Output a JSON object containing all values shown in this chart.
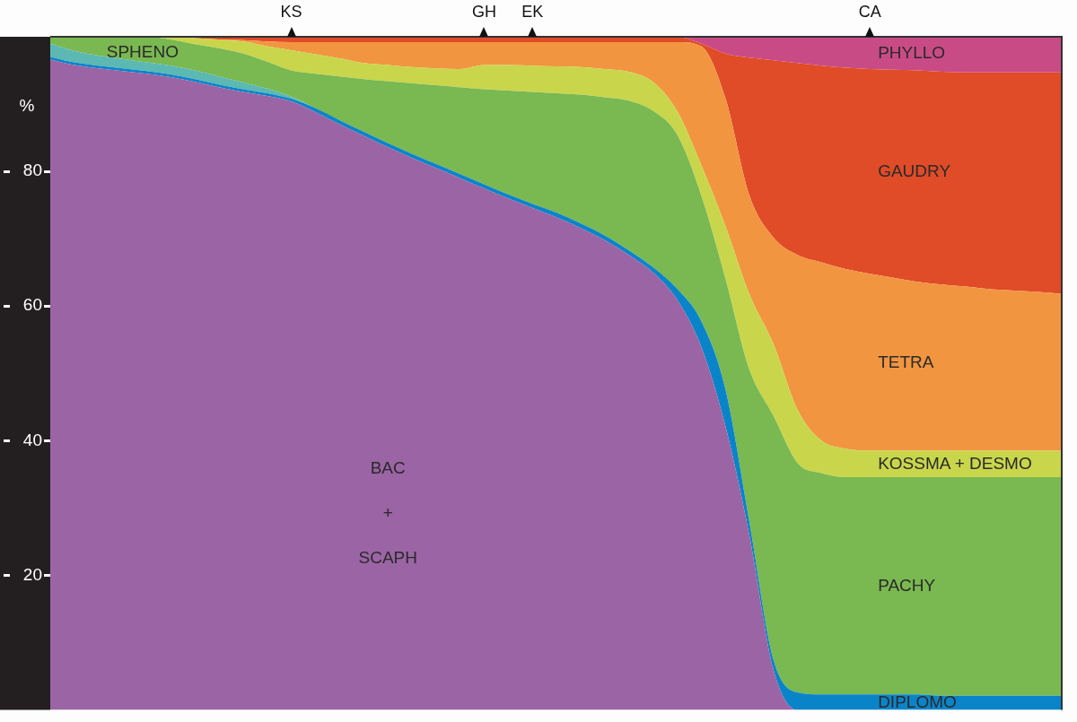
{
  "chart_data": {
    "type": "area",
    "stacked": true,
    "ylabel": "%",
    "ylim": [
      0,
      100
    ],
    "yticks": [
      20,
      40,
      60,
      80
    ],
    "grid": false,
    "legend": false,
    "categories": [
      null,
      null,
      null,
      null,
      null,
      null,
      null,
      null,
      null,
      null,
      "KS",
      null,
      null,
      null,
      null,
      null,
      null,
      null,
      "GH",
      null,
      "EK",
      null,
      null,
      null,
      null,
      null,
      null,
      null,
      null,
      null,
      null,
      null,
      null,
      null,
      "CA",
      null,
      null,
      null,
      null,
      null,
      null,
      null,
      null
    ],
    "series": [
      {
        "name": "BAC + SCAPH",
        "color": "#9b64a4",
        "values": [
          96.6,
          95.8,
          95.3,
          94.9,
          94.5,
          94.0,
          93.3,
          92.5,
          91.8,
          91.2,
          90.4,
          88.8,
          87.0,
          85.3,
          83.6,
          82.0,
          80.5,
          79.0,
          77.5,
          76.0,
          74.6,
          73.2,
          71.6,
          69.8,
          67.6,
          65.0,
          61.0,
          54.0,
          42.3,
          26.0,
          6.0,
          0,
          0,
          0,
          0,
          0,
          0,
          0,
          0,
          0,
          0,
          0,
          0
        ]
      },
      {
        "name": "DIPLOMO",
        "color": "#0a84c9",
        "values": [
          0.4,
          0.4,
          0.4,
          0.4,
          0.4,
          0.4,
          0.4,
          0.4,
          0.4,
          0.4,
          0.4,
          0.6,
          0.6,
          0.6,
          0.6,
          0.6,
          0.6,
          0.6,
          0.6,
          0.6,
          0.6,
          0.7,
          0.7,
          0.7,
          0.7,
          0.8,
          1.6,
          3.8,
          5.5,
          2.0,
          1.5,
          2.6,
          2.3,
          2.3,
          2.3,
          2.3,
          2.3,
          2.1,
          2.1,
          2.1,
          2.1,
          2.1,
          2.1
        ]
      },
      {
        "name": "SPHENO",
        "color": "#5cb8b2",
        "values": [
          2.0,
          1.7,
          1.5,
          1.4,
          1.3,
          1.3,
          1.3,
          1.2,
          1.0,
          0.7,
          0.3,
          0,
          0,
          0,
          0,
          0,
          0,
          0,
          0,
          0,
          0,
          0,
          0,
          0,
          0,
          0,
          0,
          0,
          0,
          0,
          0,
          0,
          0,
          0,
          0,
          0,
          0,
          0,
          0,
          0,
          0,
          0,
          0
        ]
      },
      {
        "name": "PACHY",
        "color": "#7ab851",
        "values": [
          1.0,
          2.1,
          2.8,
          3.3,
          3.8,
          3.9,
          3.9,
          4.2,
          4.3,
          4.0,
          3.9,
          5.1,
          6.5,
          7.8,
          9.2,
          10.5,
          11.7,
          12.9,
          14.1,
          15.4,
          16.6,
          17.7,
          19.1,
          20.5,
          22.2,
          23.2,
          22.9,
          18.7,
          16.4,
          22.6,
          36.2,
          34.1,
          32.9,
          32.3,
          32.3,
          32.3,
          32.3,
          32.5,
          32.5,
          32.5,
          32.5,
          32.5,
          32.5
        ]
      },
      {
        "name": "KOSSMA + DESMO",
        "color": "#c9d64b",
        "values": [
          0,
          0,
          0,
          0,
          0,
          0.4,
          0.9,
          1.3,
          1.8,
          2.3,
          3.0,
          2.9,
          2.7,
          2.4,
          2.4,
          2.4,
          2.5,
          2.7,
          3.6,
          3.8,
          3.9,
          4.0,
          4.1,
          4.2,
          4.3,
          4.3,
          3.5,
          4.5,
          7.8,
          11.2,
          10.7,
          7.9,
          4.8,
          4.2,
          3.9,
          3.9,
          3.9,
          3.9,
          3.9,
          3.9,
          3.9,
          3.9,
          3.9
        ]
      },
      {
        "name": "TETRA",
        "color": "#f29540",
        "values": [
          0,
          0,
          0,
          0,
          0,
          0,
          0,
          0,
          0.2,
          0.7,
          1.2,
          1.8,
          2.4,
          3.1,
          3.4,
          3.7,
          3.9,
          4.0,
          3.4,
          3.4,
          3.5,
          3.6,
          3.7,
          4.0,
          4.4,
          5.9,
          10.2,
          17.6,
          19.0,
          14.7,
          15.8,
          23.0,
          26.5,
          26.7,
          26.3,
          25.7,
          25.1,
          24.7,
          24.4,
          24.0,
          23.8,
          23.6,
          23.3
        ]
      },
      {
        "name": "GAUDRY",
        "color": "#e04b28",
        "values": [
          0,
          0,
          0,
          0,
          0,
          0,
          0.2,
          0.4,
          0.5,
          0.8,
          0.8,
          0.8,
          0.8,
          0.8,
          0.8,
          0.8,
          0.8,
          0.8,
          0.8,
          0.8,
          0.8,
          0.8,
          0.8,
          0.8,
          0.8,
          0.8,
          0.8,
          0.4,
          6.5,
          20.4,
          26.3,
          28.5,
          29.2,
          29.9,
          30.4,
          30.9,
          31.4,
          31.6,
          31.8,
          32.2,
          32.4,
          32.6,
          32.9
        ]
      },
      {
        "name": "PHYLLO",
        "color": "#c94b85",
        "values": [
          0,
          0,
          0,
          0,
          0,
          0,
          0,
          0,
          0,
          0,
          0,
          0,
          0,
          0,
          0,
          0,
          0,
          0,
          0,
          0,
          0,
          0,
          0,
          0,
          0,
          0,
          0,
          1.0,
          2.5,
          3.1,
          3.5,
          3.9,
          4.3,
          4.6,
          4.8,
          4.9,
          5.0,
          5.2,
          5.3,
          5.3,
          5.3,
          5.3,
          5.3
        ]
      }
    ]
  }
}
